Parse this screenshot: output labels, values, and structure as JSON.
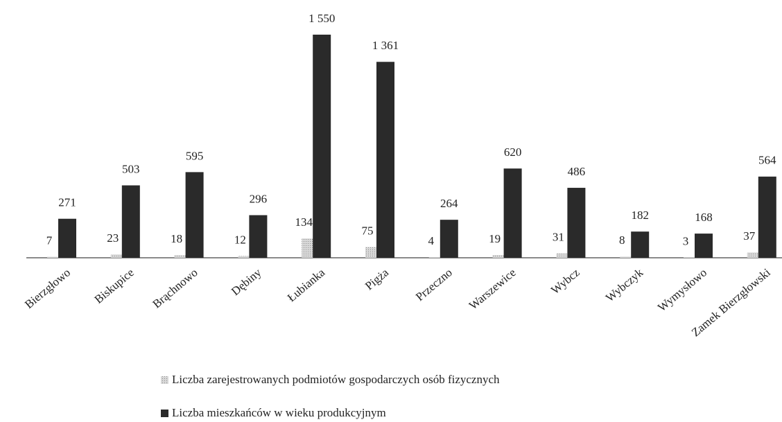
{
  "chart_data": {
    "type": "bar",
    "categories": [
      "Bierzgłowo",
      "Biskupice",
      "Brąchnowo",
      "Dębiny",
      "Łubianka",
      "Pigża",
      "Przeczno",
      "Warszewice",
      "Wybcz",
      "Wybczyk",
      "Wymysłowo",
      "Zamek Bierzgłowski"
    ],
    "series": [
      {
        "name": "Liczba zarejestrowanych podmiotów gospodarczych osób fizycznych",
        "color": "#bdbdbd",
        "values": [
          7,
          23,
          18,
          12,
          134,
          75,
          4,
          19,
          31,
          8,
          3,
          37
        ]
      },
      {
        "name": "Liczba mieszkańców w wieku produkcyjnym",
        "color": "#2a2a2a",
        "values": [
          271,
          503,
          595,
          296,
          1550,
          1361,
          264,
          620,
          486,
          182,
          168,
          564
        ],
        "value_labels": [
          "271",
          "503",
          "595",
          "296",
          "1 550",
          "1 361",
          "264",
          "620",
          "486",
          "182",
          "168",
          "564"
        ]
      }
    ]
  }
}
